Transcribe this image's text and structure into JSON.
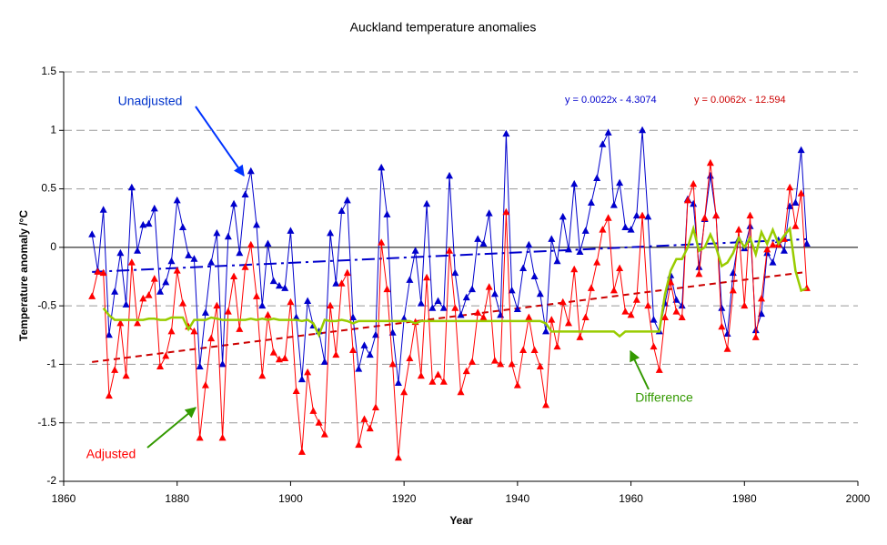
{
  "chart_data": {
    "type": "line",
    "title": "Auckland temperature anomalies",
    "xlabel": "Year",
    "ylabel": "Temperature anomaly /°C",
    "xlim": [
      1860,
      2000
    ],
    "xticks": [
      1860,
      1880,
      1900,
      1920,
      1940,
      1960,
      1980,
      2000
    ],
    "ylim": [
      -2,
      1.5
    ],
    "yticks": [
      -2,
      -1.5,
      -1,
      -0.5,
      0,
      0.5,
      1,
      1.5
    ],
    "grid": true,
    "series": [
      {
        "name": "Unadjusted",
        "color": "#0000cc",
        "marker": "triangle",
        "x": [
          1865,
          1866,
          1867,
          1868,
          1869,
          1870,
          1871,
          1872,
          1873,
          1874,
          1875,
          1876,
          1877,
          1878,
          1879,
          1880,
          1881,
          1882,
          1883,
          1884,
          1885,
          1886,
          1887,
          1888,
          1889,
          1890,
          1891,
          1892,
          1893,
          1894,
          1895,
          1896,
          1897,
          1898,
          1899,
          1900,
          1901,
          1902,
          1903,
          1904,
          1905,
          1906,
          1907,
          1908,
          1909,
          1910,
          1911,
          1912,
          1913,
          1914,
          1915,
          1916,
          1917,
          1918,
          1919,
          1920,
          1921,
          1922,
          1923,
          1924,
          1925,
          1926,
          1927,
          1928,
          1929,
          1930,
          1931,
          1932,
          1933,
          1934,
          1935,
          1936,
          1937,
          1938,
          1939,
          1940,
          1941,
          1942,
          1943,
          1944,
          1945,
          1946,
          1947,
          1948,
          1949,
          1950,
          1951,
          1952,
          1953,
          1954,
          1955,
          1956,
          1957,
          1958,
          1959,
          1960,
          1961,
          1962,
          1963,
          1964,
          1965,
          1966,
          1967,
          1968,
          1969,
          1970,
          1971,
          1972,
          1973,
          1974,
          1975,
          1976,
          1977,
          1978,
          1979,
          1980,
          1981,
          1982,
          1983,
          1984,
          1985,
          1986,
          1987,
          1988,
          1989,
          1990,
          1991
        ],
        "values": [
          0.11,
          -0.2,
          0.32,
          -0.75,
          -0.38,
          -0.05,
          -0.49,
          0.51,
          -0.03,
          0.19,
          0.2,
          0.33,
          -0.38,
          -0.3,
          -0.12,
          0.4,
          0.17,
          -0.07,
          -0.1,
          -1.02,
          -0.56,
          -0.13,
          0.12,
          -1.0,
          0.09,
          0.37,
          -0.05,
          0.45,
          0.65,
          0.19,
          -0.5,
          0.03,
          -0.29,
          -0.33,
          -0.35,
          0.14,
          -0.6,
          -1.13,
          -0.46,
          -0.67,
          -0.72,
          -0.98,
          0.12,
          -0.31,
          0.31,
          0.4,
          -0.6,
          -1.04,
          -0.84,
          -0.92,
          -0.75,
          0.68,
          0.28,
          -0.73,
          -1.16,
          -0.61,
          -0.28,
          -0.03,
          -0.48,
          0.37,
          -0.52,
          -0.46,
          -0.52,
          0.61,
          -0.22,
          -0.58,
          -0.43,
          -0.36,
          0.07,
          0.03,
          0.29,
          -0.4,
          -0.58,
          0.97,
          -0.37,
          -0.53,
          -0.18,
          0.02,
          -0.25,
          -0.4,
          -0.72,
          0.07,
          -0.12,
          0.26,
          -0.02,
          0.54,
          -0.04,
          0.14,
          0.38,
          0.59,
          0.88,
          0.98,
          0.36,
          0.55,
          0.17,
          0.15,
          0.27,
          1.0,
          0.26,
          -0.62,
          -0.72,
          -0.48,
          -0.24,
          -0.45,
          -0.5,
          0.41,
          0.37,
          -0.17,
          0.24,
          0.61,
          0.27,
          -0.52,
          -0.74,
          -0.22,
          0.07,
          -0.01,
          0.18,
          -0.71,
          -0.57,
          -0.05,
          -0.13,
          0.06,
          -0.03,
          0.35,
          0.38,
          0.83,
          0.03
        ]
      },
      {
        "name": "Adjusted",
        "color": "#ff0000",
        "marker": "triangle",
        "x": [
          1865,
          1866,
          1867,
          1868,
          1869,
          1870,
          1871,
          1872,
          1873,
          1874,
          1875,
          1876,
          1877,
          1878,
          1879,
          1880,
          1881,
          1882,
          1883,
          1884,
          1885,
          1886,
          1887,
          1888,
          1889,
          1890,
          1891,
          1892,
          1893,
          1894,
          1895,
          1896,
          1897,
          1898,
          1899,
          1900,
          1901,
          1902,
          1903,
          1904,
          1905,
          1906,
          1907,
          1908,
          1909,
          1910,
          1911,
          1912,
          1913,
          1914,
          1915,
          1916,
          1917,
          1918,
          1919,
          1920,
          1921,
          1922,
          1923,
          1924,
          1925,
          1926,
          1927,
          1928,
          1929,
          1930,
          1931,
          1932,
          1933,
          1934,
          1935,
          1936,
          1937,
          1938,
          1939,
          1940,
          1941,
          1942,
          1943,
          1944,
          1945,
          1946,
          1947,
          1948,
          1949,
          1950,
          1951,
          1952,
          1953,
          1954,
          1955,
          1956,
          1957,
          1958,
          1959,
          1960,
          1961,
          1962,
          1963,
          1964,
          1965,
          1966,
          1967,
          1968,
          1969,
          1970,
          1971,
          1972,
          1973,
          1974,
          1975,
          1976,
          1977,
          1978,
          1979,
          1980,
          1981,
          1982,
          1983,
          1984,
          1985,
          1986,
          1987,
          1988,
          1989,
          1990,
          1991
        ],
        "values": [
          -0.42,
          -0.21,
          -0.22,
          -1.27,
          -1.05,
          -0.65,
          -1.1,
          -0.13,
          -0.65,
          -0.44,
          -0.41,
          -0.27,
          -1.02,
          -0.93,
          -0.72,
          -0.2,
          -0.48,
          -0.68,
          -0.72,
          -1.63,
          -1.18,
          -0.78,
          -0.5,
          -1.63,
          -0.55,
          -0.25,
          -0.7,
          -0.17,
          0.02,
          -0.42,
          -1.1,
          -0.58,
          -0.9,
          -0.96,
          -0.95,
          -0.47,
          -1.23,
          -1.75,
          -1.07,
          -1.4,
          -1.5,
          -1.6,
          -0.5,
          -0.92,
          -0.31,
          -0.22,
          -0.88,
          -1.69,
          -1.47,
          -1.55,
          -1.37,
          0.04,
          -0.36,
          -1.0,
          -1.8,
          -1.24,
          -0.95,
          -0.64,
          -1.1,
          -0.26,
          -1.15,
          -1.09,
          -1.15,
          -0.03,
          -0.52,
          -1.24,
          -1.06,
          -0.98,
          -0.56,
          -0.6,
          -0.34,
          -0.97,
          -1.0,
          0.3,
          -1.0,
          -1.18,
          -0.88,
          -0.6,
          -0.88,
          -1.02,
          -1.35,
          -0.62,
          -0.85,
          -0.47,
          -0.65,
          -0.19,
          -0.77,
          -0.6,
          -0.35,
          -0.13,
          0.15,
          0.25,
          -0.37,
          -0.18,
          -0.55,
          -0.58,
          -0.45,
          0.27,
          -0.5,
          -0.85,
          -1.05,
          -0.6,
          -0.3,
          -0.55,
          -0.6,
          0.4,
          0.54,
          -0.23,
          0.25,
          0.72,
          0.27,
          -0.68,
          -0.87,
          -0.37,
          0.15,
          -0.5,
          0.27,
          -0.77,
          -0.44,
          -0.02,
          0.02,
          0.02,
          0.07,
          0.51,
          0.18,
          0.46,
          -0.35
        ]
      },
      {
        "name": "Difference",
        "color": "#99cc00",
        "marker": "none",
        "x": [
          1867,
          1868,
          1869,
          1870,
          1871,
          1872,
          1873,
          1874,
          1875,
          1876,
          1877,
          1878,
          1879,
          1880,
          1881,
          1882,
          1883,
          1884,
          1885,
          1886,
          1887,
          1888,
          1889,
          1890,
          1891,
          1892,
          1893,
          1894,
          1895,
          1896,
          1897,
          1898,
          1899,
          1900,
          1901,
          1902,
          1903,
          1904,
          1905,
          1906,
          1907,
          1908,
          1909,
          1910,
          1911,
          1912,
          1913,
          1914,
          1915,
          1916,
          1917,
          1918,
          1919,
          1920,
          1921,
          1922,
          1923,
          1924,
          1925,
          1926,
          1927,
          1928,
          1929,
          1930,
          1931,
          1932,
          1933,
          1934,
          1935,
          1936,
          1937,
          1938,
          1939,
          1940,
          1941,
          1942,
          1943,
          1944,
          1945,
          1946,
          1947,
          1948,
          1949,
          1950,
          1951,
          1952,
          1953,
          1954,
          1955,
          1956,
          1957,
          1958,
          1959,
          1960,
          1961,
          1962,
          1963,
          1964,
          1965,
          1966,
          1967,
          1968,
          1969,
          1970,
          1971,
          1972,
          1973,
          1974,
          1975,
          1976,
          1977,
          1978,
          1979,
          1980,
          1981,
          1982,
          1983,
          1984,
          1985,
          1986,
          1987,
          1988,
          1989,
          1990,
          1991
        ],
        "values": [
          -0.52,
          -0.58,
          -0.62,
          -0.62,
          -0.62,
          -0.62,
          -0.62,
          -0.62,
          -0.61,
          -0.61,
          -0.62,
          -0.62,
          -0.6,
          -0.6,
          -0.6,
          -0.7,
          -0.62,
          -0.62,
          -0.62,
          -0.6,
          -0.61,
          -0.62,
          -0.62,
          -0.62,
          -0.62,
          -0.62,
          -0.61,
          -0.62,
          -0.61,
          -0.62,
          -0.61,
          -0.62,
          -0.62,
          -0.62,
          -0.62,
          -0.63,
          -0.62,
          -0.65,
          -0.75,
          -0.62,
          -0.63,
          -0.63,
          -0.62,
          -0.63,
          -0.65,
          -0.63,
          -0.63,
          -0.63,
          -0.63,
          -0.63,
          -0.63,
          -0.63,
          -0.63,
          -0.63,
          -0.63,
          -0.65,
          -0.63,
          -0.63,
          -0.63,
          -0.63,
          -0.63,
          -0.63,
          -0.63,
          -0.63,
          -0.63,
          -0.63,
          -0.63,
          -0.63,
          -0.63,
          -0.63,
          -0.63,
          -0.63,
          -0.63,
          -0.63,
          -0.63,
          -0.63,
          -0.63,
          -0.63,
          -0.65,
          -0.72,
          -0.72,
          -0.72,
          -0.72,
          -0.72,
          -0.72,
          -0.72,
          -0.72,
          -0.72,
          -0.72,
          -0.72,
          -0.72,
          -0.76,
          -0.72,
          -0.72,
          -0.72,
          -0.72,
          -0.72,
          -0.72,
          -0.72,
          -0.4,
          -0.2,
          -0.1,
          -0.1,
          0.0,
          0.16,
          -0.03,
          0.0,
          0.11,
          0.0,
          -0.16,
          -0.13,
          -0.05,
          0.08,
          0.0,
          0.08,
          -0.06,
          0.13,
          0.03,
          0.15,
          0.03,
          0.1,
          0.16,
          -0.2,
          -0.37,
          -0.35
        ]
      }
    ],
    "trendlines": [
      {
        "label": "y = 0.0022x - 4.3074",
        "color": "#0000cc",
        "x": [
          1865,
          1991
        ],
        "values": [
          -0.21,
          0.07
        ]
      },
      {
        "label": "y = 0.0062x - 12.594",
        "color": "#cc0000",
        "x": [
          1865,
          1991
        ],
        "values": [
          -0.98,
          -0.21
        ]
      }
    ],
    "annotations": [
      {
        "text": "Unadjusted",
        "color": "#0033cc"
      },
      {
        "text": "Adjusted",
        "color": "#ff0000"
      },
      {
        "text": "Difference",
        "color": "#339900"
      }
    ]
  }
}
